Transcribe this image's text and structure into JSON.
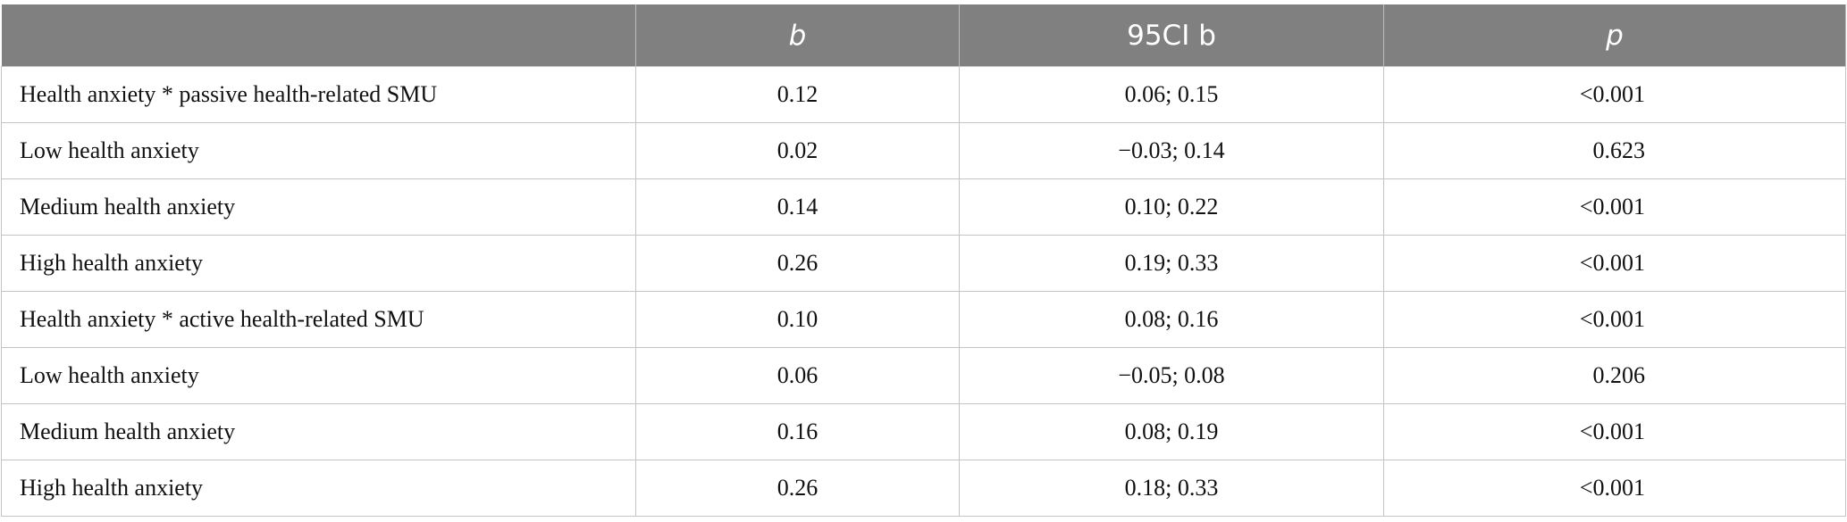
{
  "table": {
    "columns": [
      "b",
      "95CI b",
      "p"
    ],
    "rows": [
      [
        "Health anxiety * passive health-related SMU",
        "0.12",
        "0.06; 0.15",
        "<0.001"
      ],
      [
        "Low health anxiety",
        "0.02",
        "−0.03; 0.14",
        "0.623"
      ],
      [
        "Medium health anxiety",
        "0.14",
        "0.10; 0.22",
        "<0.001"
      ],
      [
        "High health anxiety",
        "0.26",
        "0.19; 0.33",
        "<0.001"
      ],
      [
        "Health anxiety * active health-related SMU",
        "0.10",
        "0.08; 0.16",
        "<0.001"
      ],
      [
        "Low health anxiety",
        "0.06",
        "−0.05; 0.08",
        "0.206"
      ],
      [
        "Medium health anxiety",
        "0.16",
        "0.08; 0.19",
        "<0.001"
      ],
      [
        "High health anxiety",
        "0.26",
        "0.18; 0.33",
        "<0.001"
      ]
    ]
  }
}
